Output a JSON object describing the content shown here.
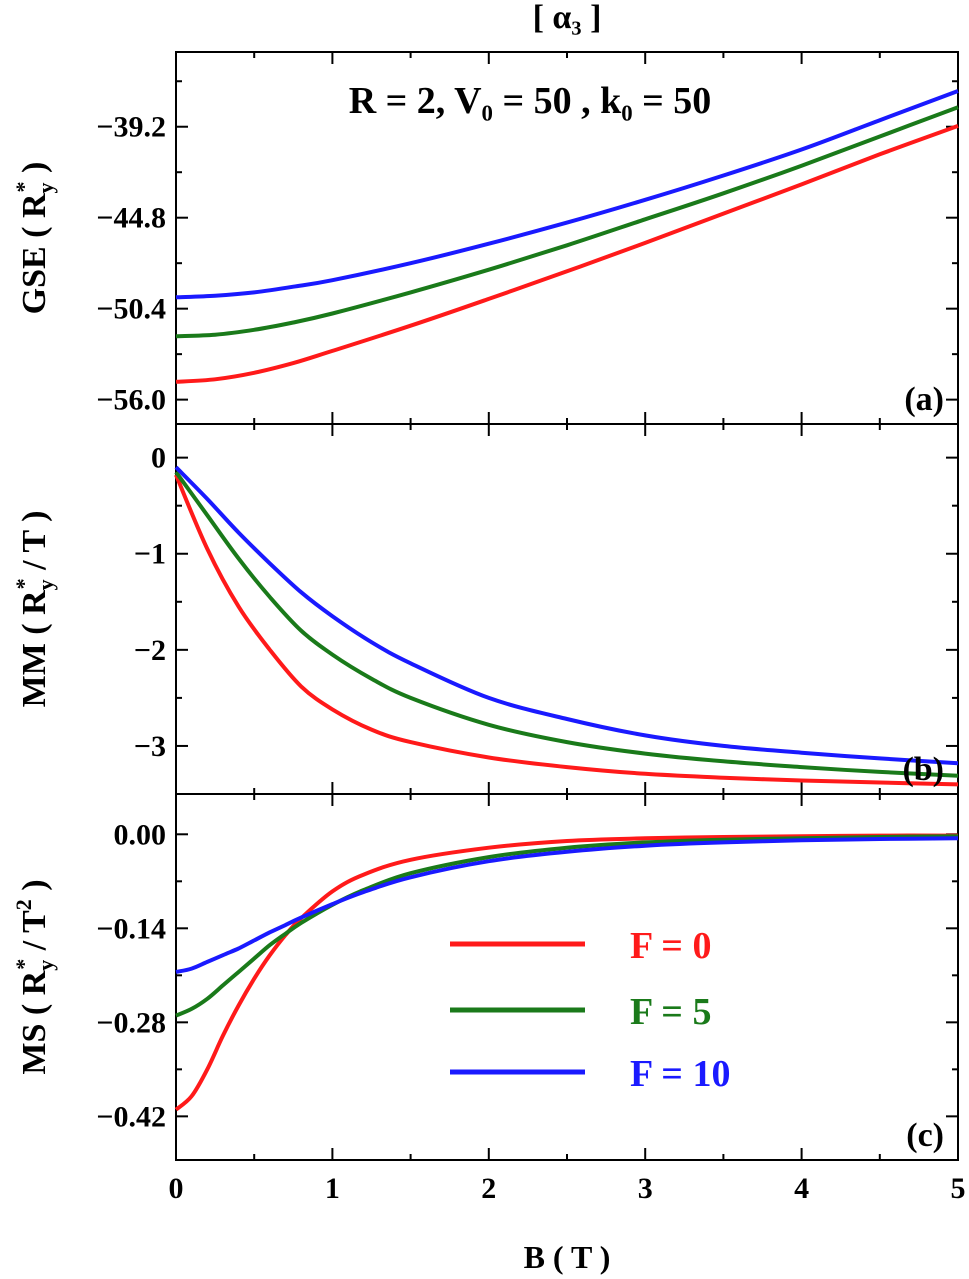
{
  "figure": {
    "title": "[ α₃ ]",
    "annotation": "R = 2, V₀ = 50 , k₀ =  50",
    "xlabel": "B ( T )",
    "colors": {
      "F0": "#ff1a1a",
      "F5": "#1a7a1a",
      "F10": "#1a1aff"
    }
  },
  "chart_data": [
    {
      "type": "line",
      "panel_label": "(a)",
      "ylabel": "GSE ( Ry* )",
      "xlim": [
        0,
        5
      ],
      "ylim": [
        -57.5,
        -34.6
      ],
      "xticks": [
        0,
        1,
        2,
        3,
        4,
        5
      ],
      "yticks": [
        -56.0,
        -50.4,
        -44.8,
        -39.2
      ],
      "ytick_labels": [
        "−56.0",
        "−50.4",
        "−44.8",
        "−39.2"
      ],
      "series": [
        {
          "name": "F = 0",
          "x": [
            0,
            0.25,
            0.5,
            0.75,
            1,
            1.5,
            2,
            2.5,
            3,
            3.5,
            4,
            4.5,
            5
          ],
          "y": [
            -54.9,
            -54.75,
            -54.35,
            -53.75,
            -53.0,
            -51.45,
            -49.8,
            -48.1,
            -46.35,
            -44.55,
            -42.75,
            -40.9,
            -39.15
          ]
        },
        {
          "name": "F = 5",
          "x": [
            0,
            0.25,
            0.5,
            0.75,
            1,
            1.5,
            2,
            2.5,
            3,
            3.5,
            4,
            4.5,
            5
          ],
          "y": [
            -52.1,
            -52.0,
            -51.7,
            -51.25,
            -50.7,
            -49.4,
            -48.0,
            -46.5,
            -44.9,
            -43.3,
            -41.6,
            -39.8,
            -38.0
          ]
        },
        {
          "name": "F = 10",
          "x": [
            0,
            0.25,
            0.5,
            0.75,
            1,
            1.5,
            2,
            2.5,
            3,
            3.5,
            4,
            4.5,
            5
          ],
          "y": [
            -49.7,
            -49.6,
            -49.4,
            -49.05,
            -48.65,
            -47.6,
            -46.4,
            -45.1,
            -43.7,
            -42.2,
            -40.6,
            -38.8,
            -37.0
          ]
        }
      ]
    },
    {
      "type": "line",
      "panel_label": "(b)",
      "ylabel": "MM ( Ry* / T )",
      "xlim": [
        0,
        5
      ],
      "ylim": [
        -3.5,
        0.35
      ],
      "xticks": [
        0,
        1,
        2,
        3,
        4,
        5
      ],
      "yticks": [
        -3,
        -2,
        -1,
        0
      ],
      "ytick_labels": [
        "−3",
        "−2",
        "−1",
        "0"
      ],
      "series": [
        {
          "name": "F = 0",
          "x": [
            0,
            0.2,
            0.4,
            0.6,
            0.8,
            1,
            1.25,
            1.5,
            2,
            2.5,
            3,
            3.5,
            4,
            4.5,
            5
          ],
          "y": [
            -0.18,
            -0.95,
            -1.55,
            -2.0,
            -2.38,
            -2.62,
            -2.83,
            -2.96,
            -3.12,
            -3.22,
            -3.29,
            -3.33,
            -3.36,
            -3.38,
            -3.4
          ]
        },
        {
          "name": "F = 5",
          "x": [
            0,
            0.2,
            0.4,
            0.6,
            0.8,
            1,
            1.25,
            1.5,
            2,
            2.5,
            3,
            3.5,
            4,
            4.5,
            5
          ],
          "y": [
            -0.15,
            -0.6,
            -1.05,
            -1.45,
            -1.8,
            -2.05,
            -2.3,
            -2.5,
            -2.78,
            -2.96,
            -3.08,
            -3.16,
            -3.22,
            -3.27,
            -3.31
          ]
        },
        {
          "name": "F = 10",
          "x": [
            0,
            0.2,
            0.4,
            0.6,
            0.8,
            1,
            1.25,
            1.5,
            2,
            2.5,
            3,
            3.5,
            4,
            4.5,
            5
          ],
          "y": [
            -0.1,
            -0.43,
            -0.78,
            -1.1,
            -1.4,
            -1.65,
            -1.92,
            -2.14,
            -2.5,
            -2.72,
            -2.89,
            -3.0,
            -3.07,
            -3.13,
            -3.18
          ]
        }
      ]
    },
    {
      "type": "line",
      "panel_label": "(c)",
      "ylabel": "MS ( Ry* / T² )",
      "xlim": [
        0,
        5
      ],
      "ylim": [
        -0.485,
        0.06
      ],
      "xticks": [
        0,
        1,
        2,
        3,
        4,
        5
      ],
      "xtick_labels": [
        "0",
        "1",
        "2",
        "3",
        "4",
        "5"
      ],
      "yticks": [
        -0.42,
        -0.28,
        -0.14,
        0.0
      ],
      "ytick_labels": [
        "−0.42",
        "−0.28",
        "−0.14",
        "0.00"
      ],
      "legend": "center-right",
      "series": [
        {
          "name": "F = 0",
          "x": [
            0,
            0.1,
            0.2,
            0.3,
            0.4,
            0.5,
            0.6,
            0.7,
            0.8,
            1,
            1.2,
            1.5,
            2,
            2.5,
            3,
            3.5,
            4,
            4.5,
            5
          ],
          "y": [
            -0.41,
            -0.39,
            -0.35,
            -0.3,
            -0.255,
            -0.215,
            -0.18,
            -0.15,
            -0.125,
            -0.085,
            -0.06,
            -0.038,
            -0.02,
            -0.01,
            -0.006,
            -0.004,
            -0.003,
            -0.002,
            -0.002
          ]
        },
        {
          "name": "F = 5",
          "x": [
            0,
            0.1,
            0.2,
            0.3,
            0.4,
            0.5,
            0.6,
            0.7,
            0.8,
            1,
            1.2,
            1.5,
            2,
            2.5,
            3,
            3.5,
            4,
            4.5,
            5
          ],
          "y": [
            -0.27,
            -0.26,
            -0.245,
            -0.225,
            -0.205,
            -0.185,
            -0.165,
            -0.148,
            -0.132,
            -0.105,
            -0.083,
            -0.058,
            -0.034,
            -0.02,
            -0.012,
            -0.008,
            -0.006,
            -0.004,
            -0.003
          ]
        },
        {
          "name": "F = 10",
          "x": [
            0,
            0.1,
            0.2,
            0.3,
            0.4,
            0.5,
            0.6,
            0.7,
            0.8,
            1,
            1.2,
            1.5,
            2,
            2.5,
            3,
            3.5,
            4,
            4.5,
            5
          ],
          "y": [
            -0.205,
            -0.2,
            -0.19,
            -0.18,
            -0.17,
            -0.158,
            -0.146,
            -0.135,
            -0.124,
            -0.104,
            -0.086,
            -0.064,
            -0.04,
            -0.026,
            -0.017,
            -0.012,
            -0.009,
            -0.007,
            -0.006
          ]
        }
      ]
    }
  ]
}
